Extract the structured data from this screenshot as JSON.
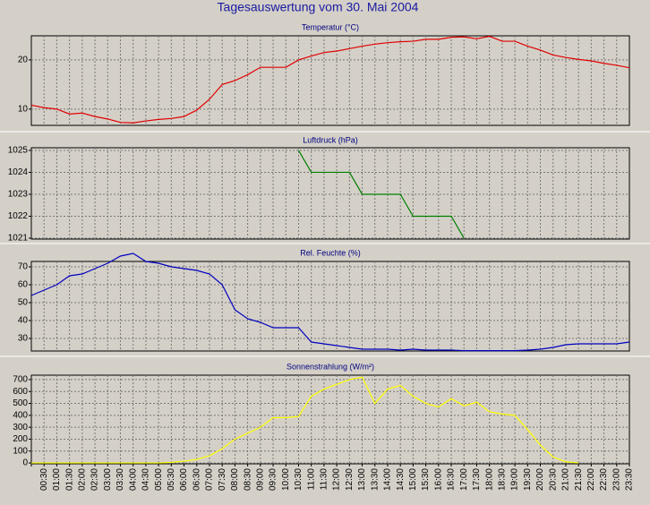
{
  "title": "Tagesauswertung vom 30. Mai 2004",
  "chart_data": [
    {
      "type": "line",
      "title": "Temperatur (°C)",
      "color": "#e00000",
      "ylim": [
        6.7,
        24.9
      ],
      "yticks": [
        10,
        20
      ],
      "grid": true,
      "values": [
        10.8,
        10.3,
        10.0,
        9.0,
        9.2,
        8.5,
        8.0,
        7.3,
        7.2,
        7.6,
        7.9,
        8.1,
        8.5,
        9.8,
        12.0,
        15.0,
        15.8,
        17.0,
        18.5,
        18.5,
        18.5,
        20.0,
        20.8,
        21.5,
        21.8,
        22.3,
        22.8,
        23.2,
        23.5,
        23.7,
        23.8,
        24.2,
        24.2,
        24.6,
        24.7,
        24.3,
        24.8,
        23.8,
        23.8,
        22.8,
        22.0,
        21.0,
        20.5,
        20.1,
        19.8,
        19.3,
        18.9,
        18.4
      ]
    },
    {
      "type": "line",
      "title": "Luftdruck (hPa)",
      "color": "#008000",
      "ylim": [
        1020.96,
        1025.12
      ],
      "yticks": [
        1021,
        1022,
        1023,
        1024,
        1025
      ],
      "grid": true,
      "values": [
        null,
        null,
        null,
        null,
        null,
        null,
        null,
        null,
        null,
        null,
        null,
        null,
        null,
        null,
        null,
        null,
        null,
        null,
        null,
        null,
        null,
        1025,
        1024,
        1024,
        1024,
        1024,
        1023,
        1023,
        1023,
        1023,
        1022,
        1022,
        1022,
        1022,
        1021,
        null,
        null,
        null,
        null,
        null,
        null,
        null,
        null,
        null,
        null,
        null,
        null,
        null
      ]
    },
    {
      "type": "line",
      "title": "Rel. Feuchte (%)",
      "color": "#0000c0",
      "ylim": [
        23,
        73
      ],
      "yticks": [
        30,
        40,
        50,
        60,
        70
      ],
      "grid": true,
      "values": [
        54,
        57,
        60,
        65,
        66,
        69,
        72,
        76,
        77.5,
        73,
        72,
        70,
        69,
        68,
        66,
        60,
        46,
        41,
        39,
        36,
        36,
        36,
        28,
        27,
        26,
        25,
        24,
        24,
        24,
        23.5,
        24,
        23.5,
        23.5,
        23.5,
        23.2,
        23.2,
        23.2,
        23.2,
        23.2,
        23.5,
        24,
        25,
        26.5,
        27,
        27,
        27,
        27,
        28
      ]
    },
    {
      "type": "line",
      "title": "Sonnenstrahlung (W/m²)",
      "color": "#ffff00",
      "ylim": [
        -7,
        737
      ],
      "yticks": [
        0,
        100,
        200,
        300,
        400,
        500,
        600,
        700
      ],
      "grid": true,
      "categories": [
        null,
        "00:30",
        "01:00",
        "01:30",
        "02:00",
        "02:30",
        "03:00",
        "03:30",
        "04:00",
        "04:30",
        "05:00",
        "05:30",
        "06:00",
        "06:30",
        "07:00",
        "07:30",
        "08:00",
        "08:30",
        "09:00",
        "09:30",
        "10:00",
        "10:30",
        "11:00",
        "11:30",
        "12:00",
        "12:30",
        "13:00",
        "13:30",
        "14:00",
        "14:30",
        "15:00",
        "15:30",
        "16:00",
        "16:30",
        "17:00",
        "17:30",
        "18:00",
        "18:30",
        "19:00",
        "19:30",
        "20:00",
        "20:30",
        "21:00",
        "21:30",
        "22:00",
        "22:30",
        "23:00",
        "23:30"
      ],
      "values": [
        0,
        0,
        0,
        0,
        0,
        0,
        0,
        0,
        0,
        0,
        0,
        5,
        15,
        30,
        60,
        120,
        200,
        250,
        300,
        380,
        380,
        390,
        560,
        620,
        660,
        700,
        720,
        500,
        620,
        650,
        560,
        500,
        470,
        540,
        480,
        510,
        430,
        410,
        400,
        280,
        150,
        50,
        10,
        0,
        null,
        null,
        null,
        null
      ]
    }
  ]
}
